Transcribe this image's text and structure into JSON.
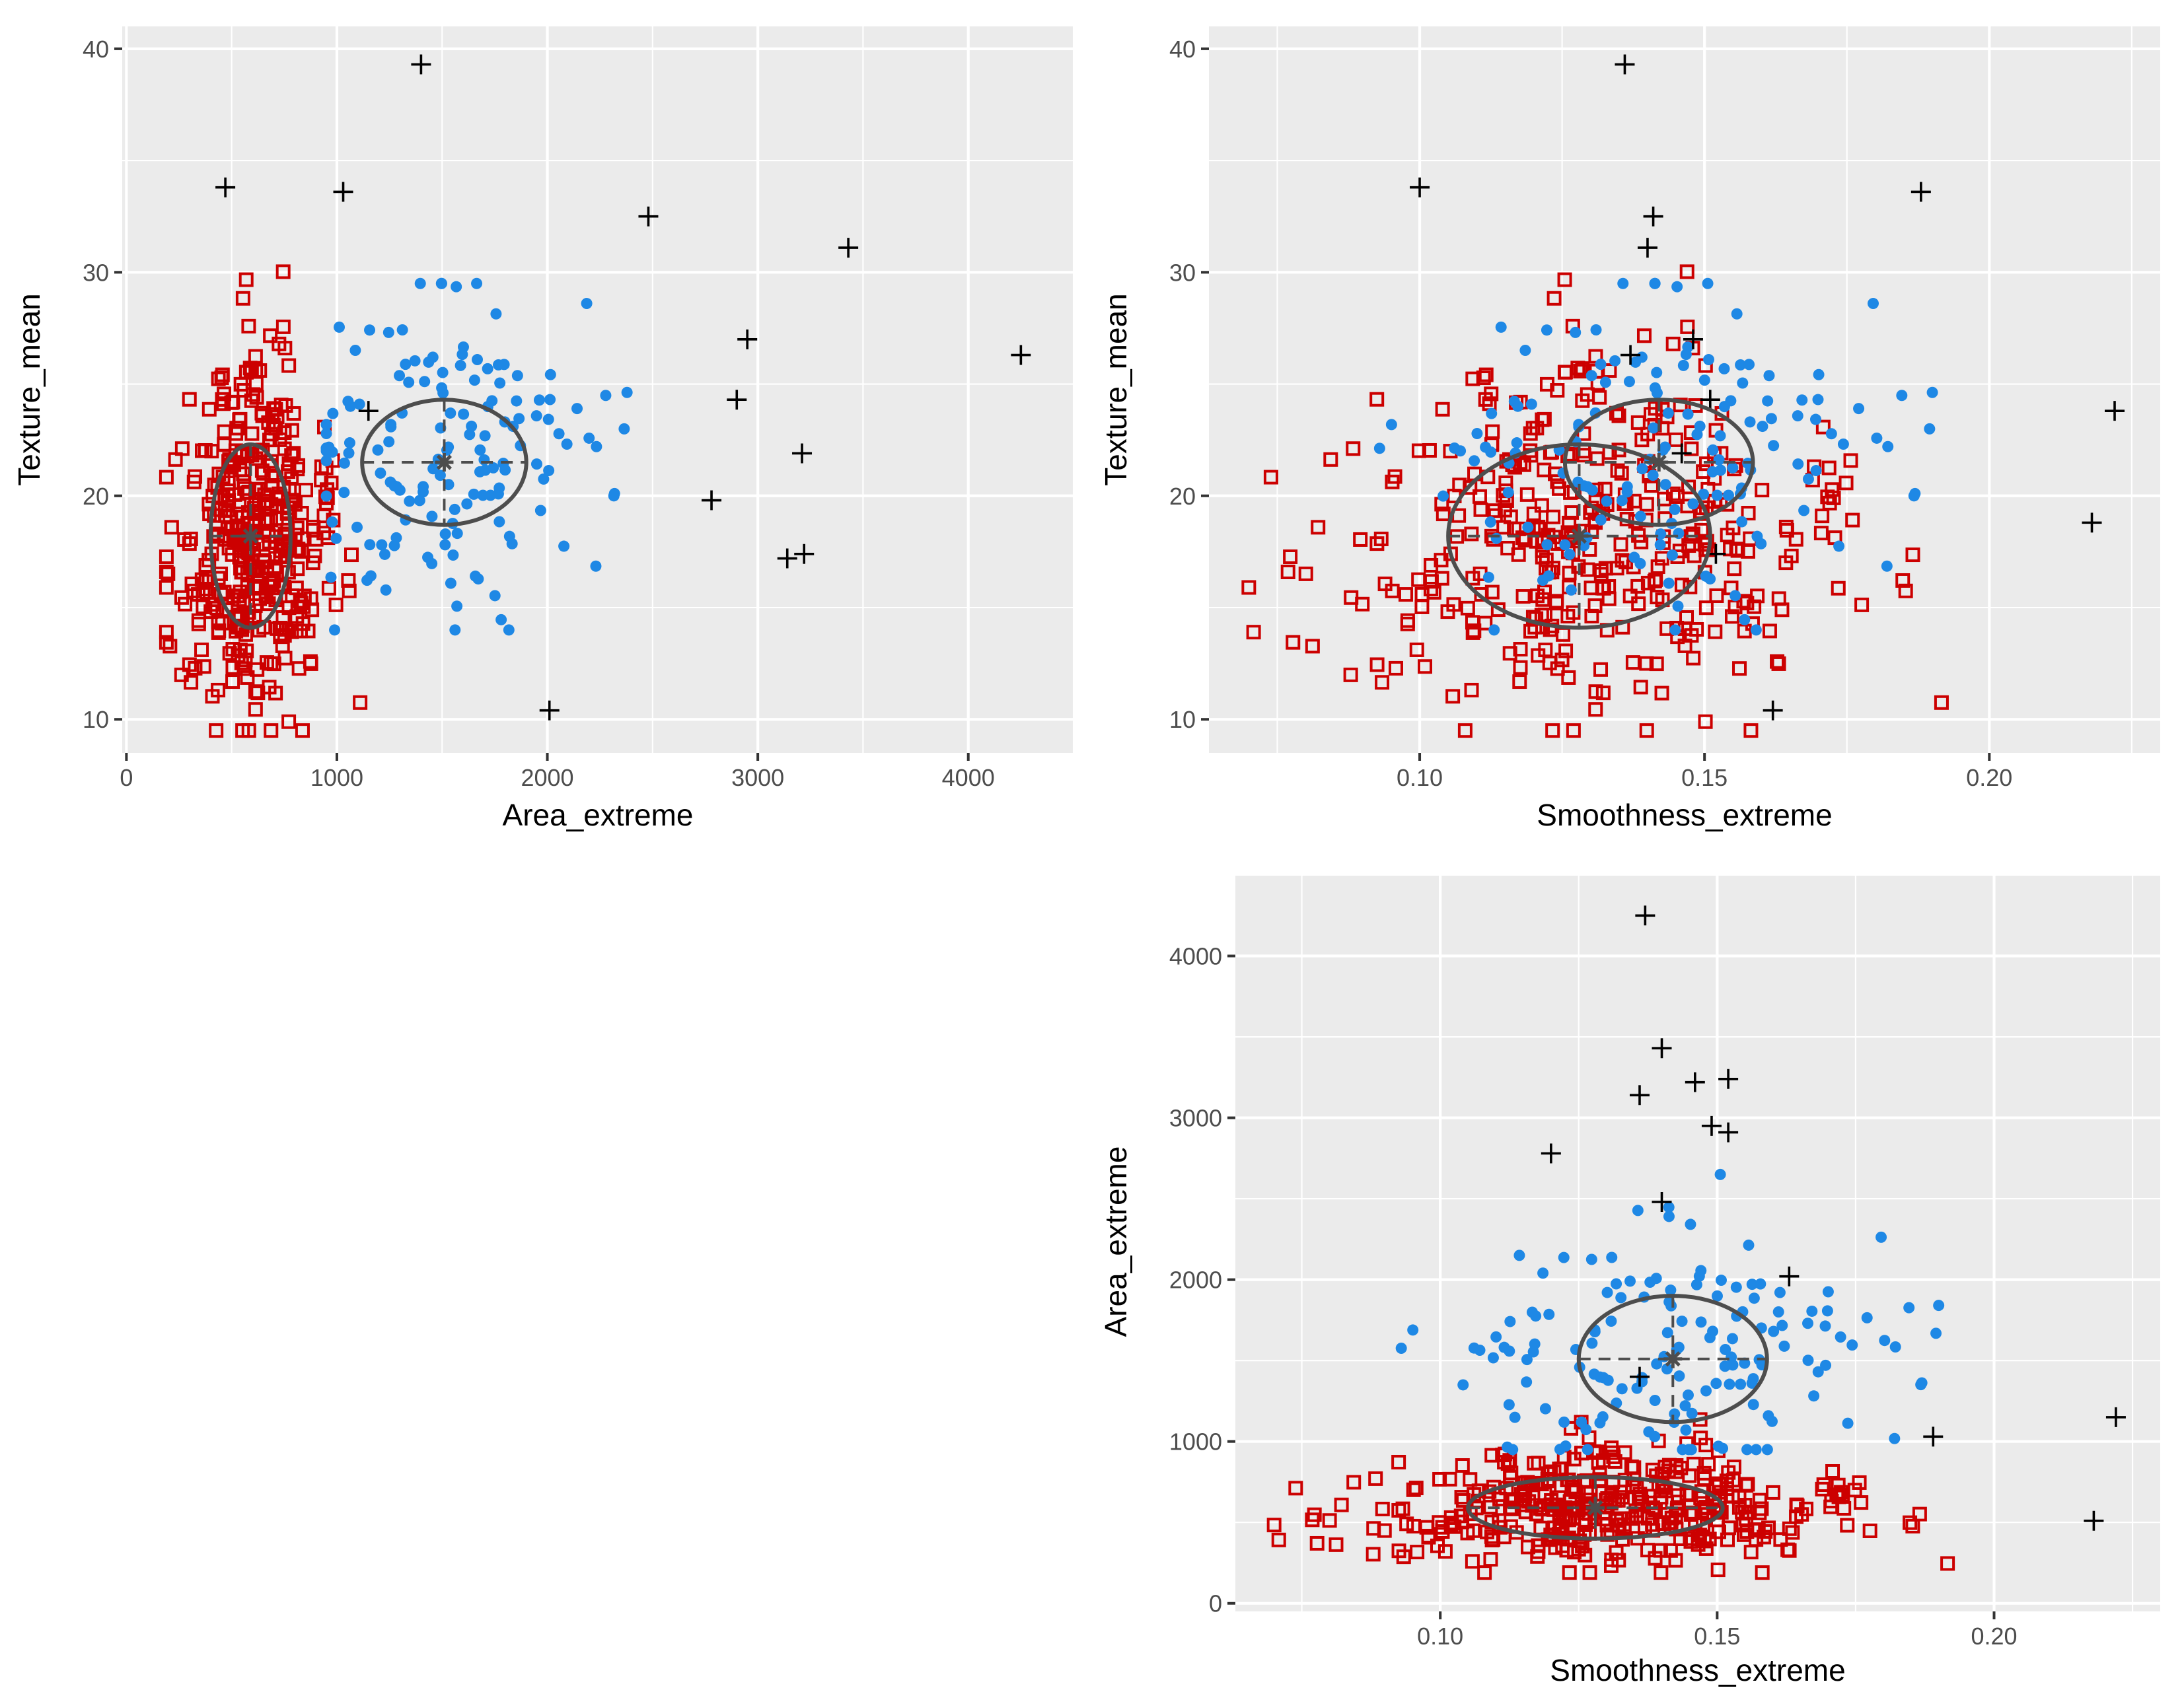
{
  "chart_data": [
    {
      "id": "p1",
      "type": "scatter",
      "xlabel": "Area_extreme",
      "ylabel": "Texture_mean",
      "xlim": [
        -20,
        4500
      ],
      "ylim": [
        8.5,
        41
      ],
      "xticks": [
        0,
        1000,
        2000,
        3000,
        4000
      ],
      "xtick_labels": [
        "0",
        "1000",
        "2000",
        "3000",
        "4000"
      ],
      "yticks": [
        10,
        20,
        30,
        40
      ],
      "ytick_labels": [
        "10",
        "20",
        "30",
        "40"
      ],
      "groups": {
        "malignant": {
          "n": 150,
          "center": [
            1510,
            21.5
          ],
          "sd": [
            360,
            3.4
          ],
          "range": [
            [
              950,
              2700
            ],
            [
              14,
              29.5
            ]
          ]
        },
        "benign": {
          "n": 400,
          "center": [
            590,
            18.2
          ],
          "sd": [
            180,
            3.9
          ],
          "range": [
            [
              190,
              1150
            ],
            [
              9.5,
              31
            ]
          ]
        }
      },
      "outliers": [
        [
          1400,
          39.3
        ],
        [
          470,
          33.8
        ],
        [
          1030,
          33.6
        ],
        [
          2480,
          32.5
        ],
        [
          3430,
          31.1
        ],
        [
          2950,
          27
        ],
        [
          4250,
          26.3
        ],
        [
          2900,
          24.3
        ],
        [
          1150,
          23.8
        ],
        [
          3210,
          21.9
        ],
        [
          2780,
          19.8
        ],
        [
          3220,
          17.4
        ],
        [
          3140,
          17.2
        ],
        [
          2010,
          10.4
        ]
      ],
      "ellipses": [
        {
          "cx": 1510,
          "cy": 21.5,
          "rx": 390,
          "ry": 2.8
        },
        {
          "cx": 590,
          "cy": 18.2,
          "rx": 190,
          "ry": 4.1
        }
      ]
    },
    {
      "id": "p2",
      "type": "scatter",
      "xlabel": "Smoothness_extreme",
      "ylabel": "Texture_mean",
      "xlim": [
        0.063,
        0.23
      ],
      "ylim": [
        8.5,
        41
      ],
      "xticks": [
        0.1,
        0.15,
        0.2
      ],
      "xtick_labels": [
        "0.10",
        "0.15",
        "0.20"
      ],
      "yticks": [
        10,
        20,
        30,
        40
      ],
      "ytick_labels": [
        "10",
        "20",
        "30",
        "40"
      ],
      "groups": {
        "malignant": {
          "n": 150,
          "center": [
            0.142,
            21.5
          ],
          "sd": [
            0.02,
            3.4
          ],
          "range": [
            [
              0.088,
              0.19
            ],
            [
              14,
              29.5
            ]
          ]
        },
        "benign": {
          "n": 400,
          "center": [
            0.128,
            18.2
          ],
          "sd": [
            0.022,
            3.9
          ],
          "range": [
            [
              0.07,
              0.21
            ],
            [
              9.5,
              31
            ]
          ]
        }
      },
      "outliers": [
        [
          0.136,
          39.3
        ],
        [
          0.1,
          33.8
        ],
        [
          0.188,
          33.6
        ],
        [
          0.141,
          32.5
        ],
        [
          0.14,
          31.1
        ],
        [
          0.148,
          27
        ],
        [
          0.137,
          26.3
        ],
        [
          0.151,
          24.3
        ],
        [
          0.222,
          23.8
        ],
        [
          0.146,
          21.9
        ],
        [
          0.218,
          18.8
        ],
        [
          0.152,
          17.4
        ],
        [
          0.162,
          10.4
        ]
      ],
      "ellipses": [
        {
          "cx": 0.142,
          "cy": 21.5,
          "rx": 0.0165,
          "ry": 2.8
        },
        {
          "cx": 0.128,
          "cy": 18.2,
          "rx": 0.023,
          "ry": 4.1
        }
      ]
    },
    {
      "id": "p3",
      "type": "scatter",
      "xlabel": "Smoothness_extreme",
      "ylabel": "Area_extreme",
      "xlim": [
        0.063,
        0.23
      ],
      "ylim": [
        -50,
        4500
      ],
      "xticks": [
        0.1,
        0.15,
        0.2
      ],
      "xtick_labels": [
        "0.10",
        "0.15",
        "0.20"
      ],
      "yticks": [
        0,
        1000,
        2000,
        3000,
        4000
      ],
      "ytick_labels": [
        "0",
        "1000",
        "2000",
        "3000",
        "4000"
      ],
      "groups": {
        "malignant": {
          "n": 150,
          "center": [
            0.142,
            1510
          ],
          "sd": [
            0.02,
            360
          ],
          "range": [
            [
              0.088,
              0.19
            ],
            [
              950,
              2650
            ]
          ]
        },
        "benign": {
          "n": 400,
          "center": [
            0.128,
            590
          ],
          "sd": [
            0.022,
            180
          ],
          "range": [
            [
              0.07,
              0.21
            ],
            [
              190,
              1200
            ]
          ]
        }
      },
      "outliers": [
        [
          0.137,
          4250
        ],
        [
          0.14,
          3430
        ],
        [
          0.146,
          3220
        ],
        [
          0.152,
          3240
        ],
        [
          0.136,
          3140
        ],
        [
          0.149,
          2950
        ],
        [
          0.152,
          2910
        ],
        [
          0.12,
          2780
        ],
        [
          0.14,
          2480
        ],
        [
          0.163,
          2020
        ],
        [
          0.136,
          1400
        ],
        [
          0.222,
          1150
        ],
        [
          0.189,
          1030
        ],
        [
          0.218,
          510
        ]
      ],
      "ellipses": [
        {
          "cx": 0.142,
          "cy": 1510,
          "rx": 0.017,
          "ry": 390
        },
        {
          "cx": 0.128,
          "cy": 590,
          "rx": 0.023,
          "ry": 190
        }
      ]
    }
  ],
  "colors": {
    "malignant": "#1e88e5",
    "benign": "#cc0000",
    "outlier": "#000000",
    "ellipse": "#4d4d4d",
    "panel": "#ebebeb"
  }
}
